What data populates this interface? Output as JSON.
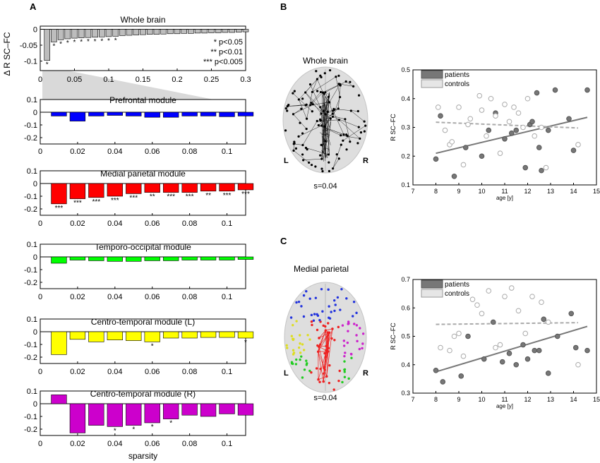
{
  "figure": {
    "panel_labels": [
      "A",
      "B",
      "C"
    ],
    "significance_legend": [
      "* p<0.05",
      "** p<0.01",
      "*** p<0.005"
    ]
  },
  "chart_data": [
    {
      "id": "A1",
      "type": "bar",
      "title": "Whole brain",
      "ylabel": "Δ R SC–FC",
      "xlabel": "",
      "xlim": [
        0,
        0.3
      ],
      "ylim": [
        -0.13,
        0.01
      ],
      "xticks": [
        "0",
        "0.05",
        "0.1",
        "0.15",
        "0.2",
        "0.25",
        "0.3"
      ],
      "yticks": [
        "0",
        "-0.05",
        "-0.1"
      ],
      "color": "#bdbdbd",
      "categories": [
        0.01,
        0.02,
        0.03,
        0.04,
        0.05,
        0.06,
        0.07,
        0.08,
        0.09,
        0.1,
        0.11,
        0.12,
        0.13,
        0.14,
        0.15,
        0.16,
        0.17,
        0.18,
        0.19,
        0.2,
        0.21,
        0.22,
        0.23,
        0.24,
        0.25,
        0.26,
        0.27,
        0.28,
        0.29,
        0.3
      ],
      "values": [
        -0.098,
        -0.04,
        -0.033,
        -0.03,
        -0.028,
        -0.027,
        -0.026,
        -0.025,
        -0.024,
        -0.023,
        -0.022,
        -0.02,
        -0.019,
        -0.018,
        -0.017,
        -0.016,
        -0.016,
        -0.015,
        -0.014,
        -0.014,
        -0.013,
        -0.013,
        -0.012,
        -0.012,
        -0.011,
        -0.011,
        -0.01,
        -0.01,
        -0.009,
        -0.008
      ],
      "significance": [
        "*",
        "*",
        "*",
        "*",
        "*",
        "*",
        "*",
        "*",
        "*",
        "*",
        "*",
        "",
        "",
        "",
        "",
        "",
        "",
        "",
        "",
        "",
        "",
        "",
        "",
        "",
        "",
        "",
        "",
        "",
        "",
        ""
      ]
    },
    {
      "id": "A2",
      "type": "bar",
      "title": "Prefrontal module",
      "xlabel": "",
      "xlim": [
        0,
        0.11
      ],
      "ylim": [
        -0.25,
        0.1
      ],
      "xticks": [
        "0",
        "0.02",
        "0.04",
        "0.06",
        "0.08",
        "0.1"
      ],
      "yticks": [
        "0.1",
        "0",
        "-0.1",
        "-0.2"
      ],
      "color": "#0000ff",
      "categories": [
        0.01,
        0.02,
        0.03,
        0.04,
        0.05,
        0.06,
        0.07,
        0.08,
        0.09,
        0.1,
        0.11
      ],
      "values": [
        -0.03,
        -0.07,
        -0.03,
        -0.025,
        -0.03,
        -0.04,
        -0.04,
        -0.03,
        -0.03,
        -0.035,
        -0.03
      ],
      "significance": [
        "",
        "",
        "",
        "",
        "",
        "",
        "",
        "",
        "",
        "",
        ""
      ]
    },
    {
      "id": "A3",
      "type": "bar",
      "title": "Medial parietal module",
      "xlabel": "",
      "xlim": [
        0,
        0.11
      ],
      "ylim": [
        -0.25,
        0.1
      ],
      "xticks": [
        "0",
        "0.02",
        "0.04",
        "0.06",
        "0.08",
        "0.1"
      ],
      "yticks": [
        "0.1",
        "0",
        "-0.1",
        "-0.2"
      ],
      "color": "#ff0000",
      "categories": [
        0.01,
        0.02,
        0.03,
        0.04,
        0.05,
        0.06,
        0.07,
        0.08,
        0.09,
        0.1,
        0.11
      ],
      "values": [
        -0.16,
        -0.12,
        -0.11,
        -0.1,
        -0.08,
        -0.07,
        -0.07,
        -0.07,
        -0.06,
        -0.06,
        -0.05
      ],
      "significance": [
        "***",
        "***",
        "***",
        "***",
        "***",
        "**",
        "***",
        "***",
        "**",
        "***",
        "***"
      ]
    },
    {
      "id": "A4",
      "type": "bar",
      "title": "Temporo-occipital module",
      "xlabel": "",
      "xlim": [
        0,
        0.11
      ],
      "ylim": [
        -0.25,
        0.1
      ],
      "xticks": [
        "0",
        "0.02",
        "0.04",
        "0.06",
        "0.08",
        "0.1"
      ],
      "yticks": [
        "0.1",
        "0",
        "-0.1",
        "-0.2"
      ],
      "color": "#00ff00",
      "categories": [
        0.01,
        0.02,
        0.03,
        0.04,
        0.05,
        0.06,
        0.07,
        0.08,
        0.09,
        0.1,
        0.11
      ],
      "values": [
        -0.05,
        -0.025,
        -0.03,
        -0.035,
        -0.035,
        -0.03,
        -0.03,
        -0.025,
        -0.025,
        -0.025,
        -0.02
      ],
      "significance": [
        "",
        "",
        "",
        "",
        "",
        "",
        "",
        "",
        "",
        "",
        ""
      ]
    },
    {
      "id": "A5",
      "type": "bar",
      "title": "Centro-temporal module (L)",
      "xlabel": "",
      "xlim": [
        0,
        0.11
      ],
      "ylim": [
        -0.25,
        0.1
      ],
      "xticks": [
        "0",
        "0.02",
        "0.04",
        "0.06",
        "0.08",
        "0.1"
      ],
      "yticks": [
        "0.1",
        "0",
        "-0.1",
        "-0.2"
      ],
      "color": "#ffff00",
      "categories": [
        0.01,
        0.02,
        0.03,
        0.04,
        0.05,
        0.06,
        0.07,
        0.08,
        0.09,
        0.1,
        0.11
      ],
      "values": [
        -0.18,
        -0.06,
        -0.08,
        -0.065,
        -0.07,
        -0.08,
        -0.05,
        -0.05,
        -0.045,
        -0.045,
        -0.05
      ],
      "significance": [
        "",
        "",
        "",
        "",
        "",
        "*",
        "",
        "",
        "",
        "",
        "*"
      ]
    },
    {
      "id": "A6",
      "type": "bar",
      "title": "Centro-temporal module (R)",
      "xlabel": "sparsity",
      "xlim": [
        0,
        0.11
      ],
      "ylim": [
        -0.25,
        0.1
      ],
      "xticks": [
        "0",
        "0.02",
        "0.04",
        "0.06",
        "0.08",
        "0.1"
      ],
      "yticks": [
        "0.1",
        "0",
        "-0.1",
        "-0.2"
      ],
      "color": "#cc00cc",
      "categories": [
        0.01,
        0.02,
        0.03,
        0.04,
        0.05,
        0.06,
        0.07,
        0.08,
        0.09,
        0.1,
        0.11
      ],
      "values": [
        0.07,
        -0.23,
        -0.17,
        -0.18,
        -0.17,
        -0.15,
        -0.12,
        -0.09,
        -0.1,
        -0.08,
        -0.09
      ],
      "significance": [
        "",
        "",
        "",
        "*",
        "*",
        "*",
        "*",
        "",
        "",
        "",
        ""
      ]
    },
    {
      "id": "B-scatter",
      "type": "scatter",
      "title": "",
      "xlabel": "age [y]",
      "ylabel": "R SC–FC",
      "xlim": [
        7,
        15
      ],
      "ylim": [
        0.1,
        0.5
      ],
      "xticks": [
        "7",
        "8",
        "9",
        "10",
        "11",
        "12",
        "13",
        "14",
        "15"
      ],
      "yticks": [
        "0.5",
        "0.4",
        "0.3",
        "0.2",
        "0.1"
      ],
      "legend": [
        "patients",
        "controls"
      ],
      "series": [
        {
          "name": "patients",
          "x": [
            8.0,
            8.2,
            8.8,
            9.3,
            10.0,
            10.3,
            10.6,
            11.0,
            11.3,
            11.5,
            11.9,
            12.1,
            12.2,
            12.4,
            12.5,
            12.6,
            12.9,
            13.2,
            13.8,
            14.0,
            14.6
          ],
          "y": [
            0.19,
            0.34,
            0.13,
            0.23,
            0.2,
            0.29,
            0.35,
            0.26,
            0.28,
            0.29,
            0.16,
            0.31,
            0.32,
            0.42,
            0.23,
            0.15,
            0.29,
            0.43,
            0.33,
            0.22,
            0.43
          ],
          "fill": "#777777"
        },
        {
          "name": "controls",
          "x": [
            8.1,
            8.4,
            8.6,
            8.7,
            9.0,
            9.2,
            9.4,
            9.5,
            9.9,
            10.0,
            10.2,
            10.4,
            10.6,
            10.8,
            11.0,
            11.2,
            11.4,
            11.6,
            11.8,
            12.0,
            12.3,
            12.6,
            12.8,
            14.2
          ],
          "y": [
            0.37,
            0.29,
            0.24,
            0.25,
            0.37,
            0.17,
            0.31,
            0.33,
            0.41,
            0.36,
            0.27,
            0.4,
            0.34,
            0.21,
            0.38,
            0.32,
            0.37,
            0.35,
            0.3,
            0.4,
            0.27,
            0.3,
            0.16,
            0.24
          ],
          "fill": "none"
        }
      ],
      "fits": [
        {
          "name": "patients",
          "x": [
            8.0,
            14.6
          ],
          "y": [
            0.21,
            0.335
          ],
          "style": "solid"
        },
        {
          "name": "controls",
          "x": [
            8.0,
            14.2
          ],
          "y": [
            0.318,
            0.298
          ],
          "style": "dashed"
        }
      ]
    },
    {
      "id": "C-scatter",
      "type": "scatter",
      "title": "",
      "xlabel": "age [y]",
      "ylabel": "R SC–FC",
      "xlim": [
        7,
        15
      ],
      "ylim": [
        0.3,
        0.7
      ],
      "xticks": [
        "7",
        "8",
        "9",
        "10",
        "11",
        "12",
        "13",
        "14",
        "15"
      ],
      "yticks": [
        "0.7",
        "0.6",
        "0.5",
        "0.4",
        "0.3"
      ],
      "legend": [
        "patients",
        "controls"
      ],
      "series": [
        {
          "name": "patients",
          "x": [
            8.0,
            8.3,
            9.1,
            9.4,
            10.1,
            10.5,
            10.9,
            11.2,
            11.5,
            11.8,
            12.0,
            12.3,
            12.5,
            12.7,
            12.9,
            13.3,
            13.9,
            14.1,
            14.6
          ],
          "y": [
            0.38,
            0.34,
            0.36,
            0.5,
            0.42,
            0.55,
            0.41,
            0.44,
            0.4,
            0.47,
            0.42,
            0.45,
            0.45,
            0.56,
            0.37,
            0.5,
            0.58,
            0.46,
            0.45
          ],
          "fill": "#777777"
        },
        {
          "name": "controls",
          "x": [
            8.2,
            8.6,
            8.8,
            9.0,
            9.2,
            9.6,
            9.8,
            10.0,
            10.3,
            10.6,
            10.8,
            11.0,
            11.3,
            11.6,
            11.9,
            12.2,
            12.6,
            12.9,
            14.2
          ],
          "y": [
            0.46,
            0.45,
            0.5,
            0.51,
            0.43,
            0.63,
            0.61,
            0.58,
            0.66,
            0.46,
            0.47,
            0.64,
            0.67,
            0.59,
            0.51,
            0.64,
            0.62,
            0.55,
            0.4
          ],
          "fill": "none"
        }
      ],
      "fits": [
        {
          "name": "patients",
          "x": [
            8.0,
            14.6
          ],
          "y": [
            0.375,
            0.535
          ],
          "style": "solid"
        },
        {
          "name": "controls",
          "x": [
            8.0,
            14.2
          ],
          "y": [
            0.542,
            0.548
          ],
          "style": "dashed"
        }
      ]
    }
  ],
  "brains": {
    "B": {
      "title": "Whole brain",
      "left": "L",
      "right": "R",
      "sparsity": "s=0.04"
    },
    "C": {
      "title": "Medial parietal",
      "left": "L",
      "right": "R",
      "sparsity": "s=0.04"
    }
  },
  "colors": {
    "axis": "#000000",
    "shade": "#d9d9d9",
    "brain": "#d0d0d0",
    "scatter_patient": "#777777",
    "fit_line": "#777777",
    "control_fit": "#999999"
  }
}
